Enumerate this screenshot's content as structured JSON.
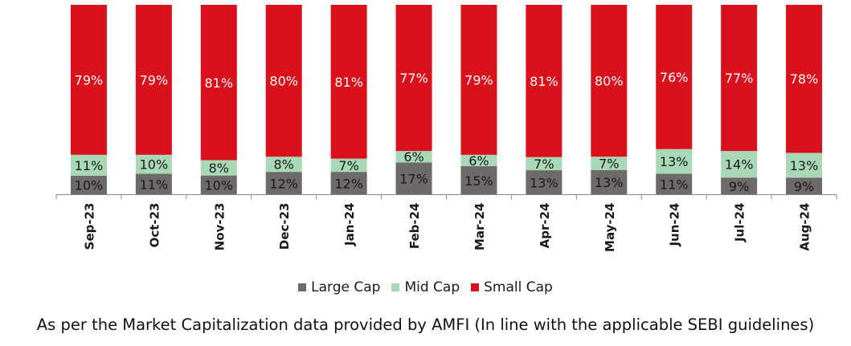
{
  "chart_data": {
    "type": "bar",
    "stacked": true,
    "normalized": true,
    "categories": [
      "Sep-23",
      "Oct-23",
      "Nov-23",
      "Dec-23",
      "Jan-24",
      "Feb-24",
      "Mar-24",
      "Apr-24",
      "May-24",
      "Jun-24",
      "Jul-24",
      "Aug-24"
    ],
    "series": [
      {
        "name": "Large Cap",
        "color": "#6d6a69",
        "values": [
          10,
          11,
          10,
          12,
          12,
          17,
          15,
          13,
          13,
          11,
          9,
          9
        ]
      },
      {
        "name": "Mid Cap",
        "color": "#a8d8b6",
        "values": [
          11,
          10,
          8,
          8,
          7,
          6,
          6,
          7,
          7,
          13,
          14,
          13
        ]
      },
      {
        "name": "Small Cap",
        "color": "#d9111d",
        "values": [
          79,
          79,
          81,
          80,
          81,
          77,
          79,
          81,
          80,
          76,
          77,
          78
        ]
      }
    ],
    "value_suffix": "%",
    "legend_position": "bottom",
    "grid": false
  },
  "caption": "As per the Market Capitalization data provided by AMFI (In line with the applicable SEBI guidelines)"
}
